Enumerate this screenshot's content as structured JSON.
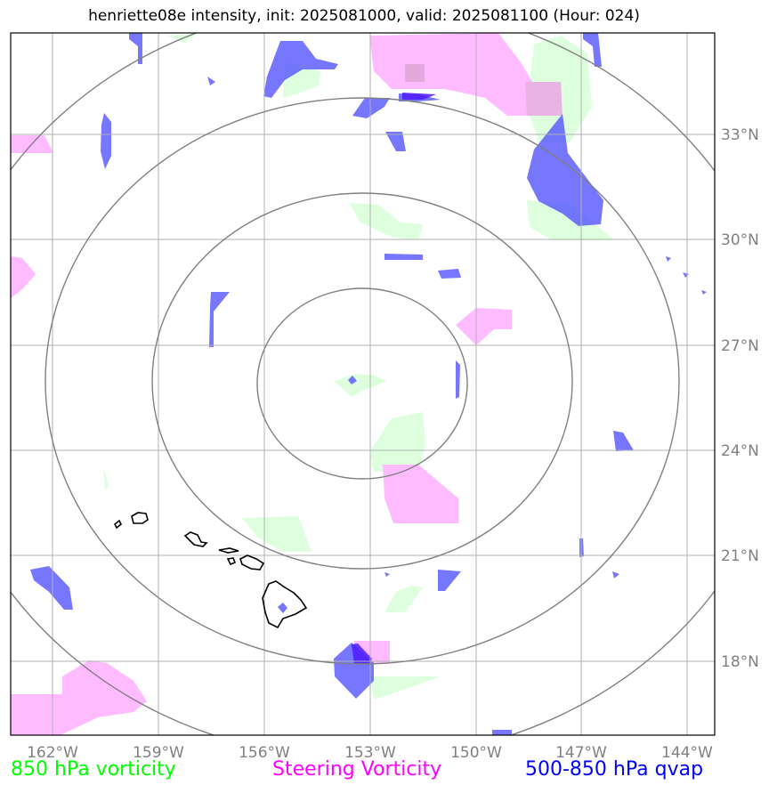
{
  "title": "henriette08e intensity, init: 2025081000, valid: 2025081100 (Hour: 024)",
  "map": {
    "lon_range": [
      -163,
      -143
    ],
    "lat_range": [
      15.9,
      36.1
    ],
    "storm_center": {
      "lon": -153.3,
      "lat": 25.9
    },
    "range_rings": 4,
    "lon_ticks": [
      "162°W",
      "159°W",
      "156°W",
      "153°W",
      "150°W",
      "147°W",
      "144°W"
    ],
    "lat_ticks": [
      "18°N",
      "21°N",
      "24°N",
      "27°N",
      "30°N",
      "33°N"
    ],
    "land": "Hawaiian Islands outline",
    "grid": true
  },
  "legend": {
    "vorticity_850": {
      "label": "850 hPa vorticity",
      "color": "#00ff00"
    },
    "steering_vorticity": {
      "label": "Steering Vorticity",
      "color": "#ff00ff"
    },
    "qvap": {
      "label": "500-850 hPa qvap",
      "color": "#0000ff"
    }
  },
  "colors": {
    "vort850_fill": "#ddffdd",
    "steering_fill": "#ffbbff",
    "qvap_fill": "#6a6aff",
    "grid": "#b0b0b0",
    "ring": "#808080",
    "tick_text": "#808080"
  }
}
